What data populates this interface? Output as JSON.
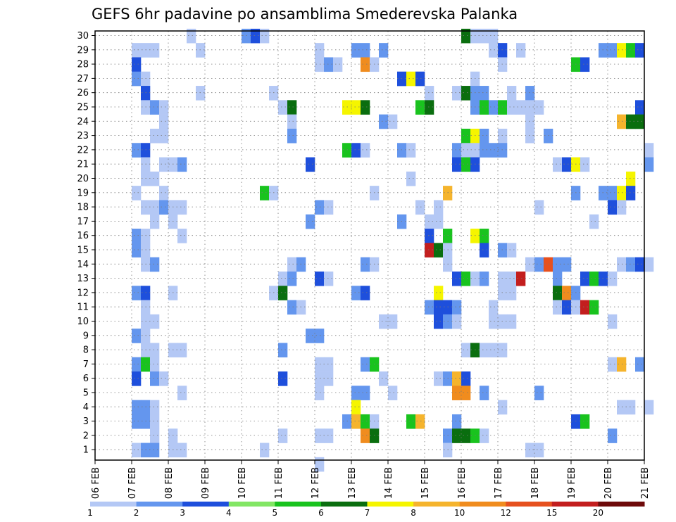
{
  "chart_data": {
    "type": "heatmap",
    "title": "GEFS 6hr padavine po ansamblima Smederevska Palanka",
    "xlabel": "",
    "ylabel": "",
    "x_tick_labels": [
      "06 FEB",
      "07 FEB",
      "08 FEB",
      "09 FEB",
      "10 FEB",
      "11 FEB",
      "12 FEB",
      "13 FEB",
      "14 FEB",
      "15 FEB",
      "16 FEB",
      "17 FEB",
      "18 FEB",
      "19 FEB",
      "20 FEB",
      "21 FEB"
    ],
    "x_range_hours": [
      0,
      360
    ],
    "step_hours": 6,
    "ensemble_members": [
      1,
      2,
      3,
      4,
      5,
      6,
      7,
      8,
      9,
      10,
      11,
      12,
      13,
      14,
      15,
      16,
      17,
      18,
      19,
      20,
      21,
      22,
      23,
      24,
      25,
      26,
      27,
      28,
      29,
      30
    ],
    "legend": {
      "labels": [
        "1",
        "2",
        "3",
        "4",
        "5",
        "6",
        "7",
        "8",
        "10",
        "12",
        "15",
        "20"
      ],
      "colors": [
        "#b4c8f5",
        "#6496ee",
        "#1e4fdc",
        "#82e664",
        "#19c31e",
        "#0a6e0f",
        "#f5f500",
        "#f5b42d",
        "#f08c1e",
        "#e6501e",
        "#c31e1e",
        "#6e0a0a"
      ]
    },
    "cells": [
      [
        30,
        10,
        1
      ],
      [
        30,
        16,
        2
      ],
      [
        30,
        17,
        3
      ],
      [
        30,
        18,
        1
      ],
      [
        30,
        40,
        6
      ],
      [
        30,
        41,
        1
      ],
      [
        30,
        42,
        1
      ],
      [
        30,
        43,
        1
      ],
      [
        29,
        4,
        1
      ],
      [
        29,
        5,
        1
      ],
      [
        29,
        6,
        1
      ],
      [
        29,
        11,
        1
      ],
      [
        29,
        24,
        1
      ],
      [
        29,
        28,
        2
      ],
      [
        29,
        29,
        2
      ],
      [
        29,
        31,
        2
      ],
      [
        29,
        43,
        1
      ],
      [
        29,
        44,
        3
      ],
      [
        29,
        46,
        1
      ],
      [
        29,
        55,
        2
      ],
      [
        29,
        56,
        2
      ],
      [
        29,
        57,
        7
      ],
      [
        29,
        58,
        5
      ],
      [
        29,
        59,
        3
      ],
      [
        28,
        4,
        3
      ],
      [
        28,
        24,
        1
      ],
      [
        28,
        25,
        2
      ],
      [
        28,
        26,
        1
      ],
      [
        28,
        29,
        9
      ],
      [
        28,
        30,
        1
      ],
      [
        28,
        44,
        1
      ],
      [
        28,
        52,
        5
      ],
      [
        28,
        53,
        3
      ],
      [
        27,
        4,
        2
      ],
      [
        27,
        5,
        1
      ],
      [
        27,
        33,
        3
      ],
      [
        27,
        34,
        7
      ],
      [
        27,
        35,
        3
      ],
      [
        27,
        41,
        1
      ],
      [
        26,
        5,
        3
      ],
      [
        26,
        11,
        1
      ],
      [
        26,
        19,
        1
      ],
      [
        26,
        36,
        1
      ],
      [
        26,
        39,
        1
      ],
      [
        26,
        40,
        6
      ],
      [
        26,
        41,
        2
      ],
      [
        26,
        42,
        2
      ],
      [
        26,
        45,
        1
      ],
      [
        26,
        47,
        2
      ],
      [
        25,
        5,
        1
      ],
      [
        25,
        6,
        2
      ],
      [
        25,
        7,
        1
      ],
      [
        25,
        20,
        1
      ],
      [
        25,
        21,
        6
      ],
      [
        25,
        27,
        7
      ],
      [
        25,
        28,
        7
      ],
      [
        25,
        29,
        6
      ],
      [
        25,
        35,
        5
      ],
      [
        25,
        36,
        6
      ],
      [
        25,
        41,
        2
      ],
      [
        25,
        42,
        5
      ],
      [
        25,
        43,
        2
      ],
      [
        25,
        44,
        5
      ],
      [
        25,
        45,
        1
      ],
      [
        25,
        46,
        1
      ],
      [
        25,
        47,
        1
      ],
      [
        25,
        48,
        1
      ],
      [
        25,
        59,
        3
      ],
      [
        24,
        7,
        1
      ],
      [
        24,
        21,
        1
      ],
      [
        24,
        31,
        2
      ],
      [
        24,
        32,
        1
      ],
      [
        24,
        47,
        1
      ],
      [
        24,
        57,
        8
      ],
      [
        24,
        58,
        6
      ],
      [
        24,
        59,
        6
      ],
      [
        23,
        6,
        1
      ],
      [
        23,
        7,
        1
      ],
      [
        23,
        21,
        2
      ],
      [
        23,
        40,
        5
      ],
      [
        23,
        41,
        7
      ],
      [
        23,
        42,
        2
      ],
      [
        23,
        44,
        1
      ],
      [
        23,
        47,
        1
      ],
      [
        23,
        49,
        2
      ],
      [
        22,
        4,
        2
      ],
      [
        22,
        5,
        3
      ],
      [
        22,
        27,
        5
      ],
      [
        22,
        28,
        3
      ],
      [
        22,
        29,
        1
      ],
      [
        22,
        33,
        2
      ],
      [
        22,
        34,
        1
      ],
      [
        22,
        39,
        2
      ],
      [
        22,
        40,
        1
      ],
      [
        22,
        41,
        1
      ],
      [
        22,
        42,
        2
      ],
      [
        22,
        43,
        2
      ],
      [
        22,
        44,
        2
      ],
      [
        22,
        60,
        1
      ],
      [
        21,
        5,
        1
      ],
      [
        21,
        7,
        1
      ],
      [
        21,
        8,
        1
      ],
      [
        21,
        9,
        2
      ],
      [
        21,
        23,
        3
      ],
      [
        21,
        39,
        3
      ],
      [
        21,
        40,
        5
      ],
      [
        21,
        41,
        3
      ],
      [
        21,
        50,
        1
      ],
      [
        21,
        51,
        3
      ],
      [
        21,
        52,
        7
      ],
      [
        21,
        53,
        1
      ],
      [
        21,
        60,
        2
      ],
      [
        20,
        5,
        1
      ],
      [
        20,
        6,
        1
      ],
      [
        20,
        34,
        1
      ],
      [
        20,
        58,
        7
      ],
      [
        19,
        4,
        1
      ],
      [
        19,
        7,
        1
      ],
      [
        19,
        18,
        5
      ],
      [
        19,
        19,
        1
      ],
      [
        19,
        30,
        1
      ],
      [
        19,
        38,
        8
      ],
      [
        19,
        52,
        2
      ],
      [
        19,
        55,
        2
      ],
      [
        19,
        56,
        2
      ],
      [
        19,
        57,
        7
      ],
      [
        19,
        58,
        3
      ],
      [
        18,
        5,
        1
      ],
      [
        18,
        6,
        1
      ],
      [
        18,
        7,
        2
      ],
      [
        18,
        8,
        1
      ],
      [
        18,
        9,
        1
      ],
      [
        18,
        24,
        2
      ],
      [
        18,
        25,
        1
      ],
      [
        18,
        35,
        1
      ],
      [
        18,
        37,
        1
      ],
      [
        18,
        48,
        1
      ],
      [
        18,
        56,
        3
      ],
      [
        18,
        57,
        1
      ],
      [
        17,
        6,
        1
      ],
      [
        17,
        8,
        1
      ],
      [
        17,
        23,
        2
      ],
      [
        17,
        33,
        2
      ],
      [
        17,
        36,
        1
      ],
      [
        17,
        37,
        1
      ],
      [
        17,
        54,
        1
      ],
      [
        16,
        4,
        2
      ],
      [
        16,
        5,
        1
      ],
      [
        16,
        9,
        1
      ],
      [
        16,
        36,
        3
      ],
      [
        16,
        38,
        5
      ],
      [
        16,
        41,
        7
      ],
      [
        16,
        42,
        5
      ],
      [
        15,
        4,
        2
      ],
      [
        15,
        5,
        1
      ],
      [
        15,
        36,
        11
      ],
      [
        15,
        37,
        6
      ],
      [
        15,
        38,
        1
      ],
      [
        15,
        42,
        3
      ],
      [
        15,
        44,
        2
      ],
      [
        15,
        45,
        1
      ],
      [
        14,
        5,
        1
      ],
      [
        14,
        6,
        2
      ],
      [
        14,
        21,
        1
      ],
      [
        14,
        22,
        2
      ],
      [
        14,
        29,
        2
      ],
      [
        14,
        30,
        1
      ],
      [
        14,
        38,
        1
      ],
      [
        14,
        47,
        1
      ],
      [
        14,
        48,
        2
      ],
      [
        14,
        49,
        10
      ],
      [
        14,
        50,
        2
      ],
      [
        14,
        51,
        2
      ],
      [
        14,
        57,
        1
      ],
      [
        14,
        58,
        2
      ],
      [
        14,
        59,
        3
      ],
      [
        14,
        60,
        1
      ],
      [
        13,
        20,
        1
      ],
      [
        13,
        21,
        2
      ],
      [
        13,
        24,
        3
      ],
      [
        13,
        25,
        1
      ],
      [
        13,
        39,
        3
      ],
      [
        13,
        40,
        5
      ],
      [
        13,
        41,
        1
      ],
      [
        13,
        42,
        2
      ],
      [
        13,
        44,
        1
      ],
      [
        13,
        45,
        1
      ],
      [
        13,
        46,
        11
      ],
      [
        13,
        50,
        2
      ],
      [
        13,
        53,
        3
      ],
      [
        13,
        54,
        5
      ],
      [
        13,
        55,
        3
      ],
      [
        13,
        56,
        1
      ],
      [
        12,
        4,
        2
      ],
      [
        12,
        5,
        3
      ],
      [
        12,
        8,
        1
      ],
      [
        12,
        19,
        1
      ],
      [
        12,
        20,
        6
      ],
      [
        12,
        28,
        2
      ],
      [
        12,
        29,
        3
      ],
      [
        12,
        37,
        7
      ],
      [
        12,
        44,
        1
      ],
      [
        12,
        45,
        1
      ],
      [
        12,
        50,
        6
      ],
      [
        12,
        51,
        9
      ],
      [
        12,
        52,
        2
      ],
      [
        11,
        5,
        1
      ],
      [
        11,
        21,
        2
      ],
      [
        11,
        22,
        1
      ],
      [
        11,
        36,
        2
      ],
      [
        11,
        37,
        3
      ],
      [
        11,
        38,
        3
      ],
      [
        11,
        39,
        2
      ],
      [
        11,
        43,
        1
      ],
      [
        11,
        50,
        1
      ],
      [
        11,
        51,
        3
      ],
      [
        11,
        52,
        1
      ],
      [
        11,
        53,
        11
      ],
      [
        11,
        54,
        5
      ],
      [
        10,
        5,
        1
      ],
      [
        10,
        6,
        1
      ],
      [
        10,
        31,
        1
      ],
      [
        10,
        32,
        1
      ],
      [
        10,
        37,
        3
      ],
      [
        10,
        38,
        2
      ],
      [
        10,
        39,
        1
      ],
      [
        10,
        43,
        1
      ],
      [
        10,
        44,
        1
      ],
      [
        10,
        45,
        1
      ],
      [
        10,
        56,
        1
      ],
      [
        9,
        4,
        2
      ],
      [
        9,
        5,
        1
      ],
      [
        9,
        23,
        2
      ],
      [
        9,
        24,
        2
      ],
      [
        8,
        5,
        1
      ],
      [
        8,
        6,
        1
      ],
      [
        8,
        8,
        1
      ],
      [
        8,
        9,
        1
      ],
      [
        8,
        20,
        2
      ],
      [
        8,
        40,
        1
      ],
      [
        8,
        41,
        6
      ],
      [
        8,
        42,
        1
      ],
      [
        8,
        43,
        1
      ],
      [
        8,
        44,
        1
      ],
      [
        7,
        4,
        2
      ],
      [
        7,
        5,
        5
      ],
      [
        7,
        6,
        1
      ],
      [
        7,
        24,
        1
      ],
      [
        7,
        25,
        1
      ],
      [
        7,
        29,
        2
      ],
      [
        7,
        30,
        5
      ],
      [
        7,
        56,
        1
      ],
      [
        7,
        57,
        8
      ],
      [
        7,
        59,
        2
      ],
      [
        6,
        4,
        3
      ],
      [
        6,
        6,
        2
      ],
      [
        6,
        7,
        1
      ],
      [
        6,
        20,
        3
      ],
      [
        6,
        24,
        1
      ],
      [
        6,
        25,
        1
      ],
      [
        6,
        31,
        1
      ],
      [
        6,
        37,
        1
      ],
      [
        6,
        38,
        2
      ],
      [
        6,
        39,
        8
      ],
      [
        6,
        40,
        3
      ],
      [
        5,
        9,
        1
      ],
      [
        5,
        24,
        1
      ],
      [
        5,
        28,
        2
      ],
      [
        5,
        29,
        2
      ],
      [
        5,
        32,
        1
      ],
      [
        5,
        39,
        9
      ],
      [
        5,
        40,
        9
      ],
      [
        5,
        42,
        2
      ],
      [
        5,
        48,
        2
      ],
      [
        4,
        4,
        2
      ],
      [
        4,
        5,
        2
      ],
      [
        4,
        6,
        1
      ],
      [
        4,
        28,
        7
      ],
      [
        4,
        44,
        1
      ],
      [
        4,
        57,
        1
      ],
      [
        4,
        58,
        1
      ],
      [
        4,
        60,
        1
      ],
      [
        3,
        4,
        2
      ],
      [
        3,
        5,
        2
      ],
      [
        3,
        6,
        1
      ],
      [
        3,
        27,
        2
      ],
      [
        3,
        28,
        8
      ],
      [
        3,
        29,
        5
      ],
      [
        3,
        30,
        1
      ],
      [
        3,
        34,
        5
      ],
      [
        3,
        35,
        8
      ],
      [
        3,
        39,
        2
      ],
      [
        3,
        52,
        3
      ],
      [
        3,
        53,
        5
      ],
      [
        2,
        6,
        1
      ],
      [
        2,
        8,
        1
      ],
      [
        2,
        20,
        1
      ],
      [
        2,
        24,
        1
      ],
      [
        2,
        25,
        1
      ],
      [
        2,
        29,
        9
      ],
      [
        2,
        30,
        6
      ],
      [
        2,
        38,
        2
      ],
      [
        2,
        39,
        6
      ],
      [
        2,
        40,
        6
      ],
      [
        2,
        41,
        5
      ],
      [
        2,
        42,
        1
      ],
      [
        2,
        56,
        2
      ],
      [
        1,
        4,
        1
      ],
      [
        1,
        5,
        2
      ],
      [
        1,
        6,
        2
      ],
      [
        1,
        8,
        1
      ],
      [
        1,
        9,
        1
      ],
      [
        1,
        18,
        1
      ],
      [
        1,
        38,
        1
      ],
      [
        1,
        47,
        1
      ],
      [
        1,
        48,
        1
      ],
      [
        0,
        24,
        1
      ]
    ]
  }
}
